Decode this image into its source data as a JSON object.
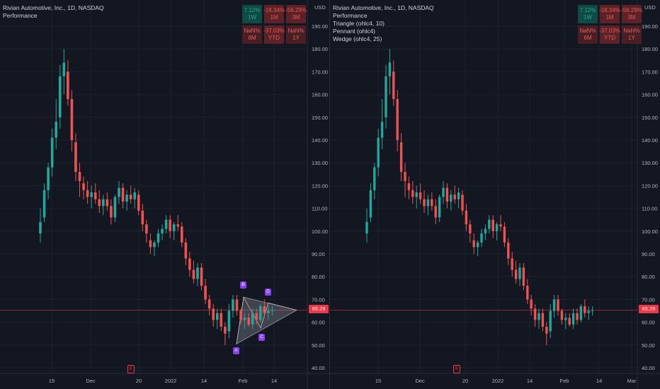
{
  "symbol_title": "Rivian Automotive, Inc., 1D, NASDAQ",
  "indicators": {
    "performance": "Performance",
    "triangle": "Triangle (ohlc4, 10)",
    "pennant": "Pennant (ohlc4)",
    "wedge": "Wedge (ohlc4, 25)"
  },
  "currency": "USD",
  "last_price": "65.29",
  "price_axis_labels": [
    "190.00",
    "180.00",
    "170.00",
    "160.00",
    "150.00",
    "140.00",
    "130.00",
    "120.00",
    "110.00",
    "100.00",
    "90.00",
    "80.00",
    "70.00",
    "60.00",
    "50.00",
    "40.00"
  ],
  "price_axis_values": [
    190,
    180,
    170,
    160,
    150,
    140,
    130,
    120,
    110,
    100,
    90,
    80,
    70,
    60,
    50,
    40
  ],
  "time_axis_labels": [
    "15",
    "Dec",
    "20",
    "2022",
    "14",
    "Feb",
    "14"
  ],
  "time_axis_labels_right": [
    "15",
    "Dec",
    "20",
    "2022",
    "14",
    "Feb",
    "14",
    "Mar"
  ],
  "earnings_marker": "E",
  "performance_table": [
    {
      "value": "7.12%",
      "period": "1W",
      "state": "pos"
    },
    {
      "value": "-18.34%",
      "period": "1M",
      "state": "neg"
    },
    {
      "value": "-56.29%",
      "period": "3M",
      "state": "neg"
    },
    {
      "value": "NaN%",
      "period": "6M",
      "state": "nan"
    },
    {
      "value": "-37.03%",
      "period": "YTD",
      "state": "neg"
    },
    {
      "value": "NaN%",
      "period": "1Y",
      "state": "nan"
    }
  ],
  "pattern_points": [
    "A",
    "B",
    "C",
    "D"
  ],
  "colors": {
    "up": "#26a69a",
    "down": "#ef5350",
    "background": "#131722",
    "grid": "#1e222d",
    "pattern": "#8a3ff0",
    "price_line": "#f23645"
  },
  "candles": [
    [
      99,
      110,
      95,
      104
    ],
    [
      106,
      121,
      104,
      118
    ],
    [
      118,
      130,
      114,
      128
    ],
    [
      128,
      145,
      124,
      141
    ],
    [
      141,
      158,
      136,
      148
    ],
    [
      150,
      173,
      145,
      168
    ],
    [
      168,
      180,
      160,
      174
    ],
    [
      170,
      175,
      155,
      158
    ],
    [
      158,
      162,
      135,
      140
    ],
    [
      139,
      143,
      122,
      126
    ],
    [
      126,
      130,
      115,
      122
    ],
    [
      121,
      124,
      114,
      118
    ],
    [
      118,
      122,
      112,
      115
    ],
    [
      115,
      120,
      110,
      117
    ],
    [
      117,
      121,
      112,
      114
    ],
    [
      114,
      118,
      108,
      111
    ],
    [
      111,
      116,
      107,
      114
    ],
    [
      114,
      117,
      109,
      111
    ],
    [
      111,
      114,
      103,
      106
    ],
    [
      106,
      116,
      104,
      115
    ],
    [
      115,
      122,
      112,
      119
    ],
    [
      119,
      121,
      110,
      113
    ],
    [
      113,
      118,
      109,
      116
    ],
    [
      116,
      120,
      112,
      114
    ],
    [
      114,
      119,
      110,
      117
    ],
    [
      116,
      118,
      107,
      109
    ],
    [
      109,
      112,
      100,
      103
    ],
    [
      103,
      105,
      95,
      99
    ],
    [
      96,
      99,
      90,
      93
    ],
    [
      93,
      96,
      89,
      95
    ],
    [
      95,
      101,
      93,
      99
    ],
    [
      99,
      103,
      96,
      101
    ],
    [
      101,
      107,
      99,
      105
    ],
    [
      105,
      107,
      97,
      100
    ],
    [
      100,
      104,
      96,
      103
    ],
    [
      103,
      107,
      100,
      102
    ],
    [
      102,
      104,
      93,
      95
    ],
    [
      95,
      97,
      85,
      88
    ],
    [
      88,
      91,
      80,
      83
    ],
    [
      83,
      87,
      77,
      79
    ],
    [
      79,
      86,
      76,
      84
    ],
    [
      84,
      86,
      74,
      76
    ],
    [
      76,
      79,
      68,
      70
    ],
    [
      70,
      72,
      63,
      66
    ],
    [
      66,
      68,
      58,
      61
    ],
    [
      61,
      66,
      57,
      64
    ],
    [
      64,
      66,
      56,
      58
    ],
    [
      58,
      60,
      50,
      55
    ],
    [
      56,
      68,
      53,
      65
    ],
    [
      65,
      72,
      62,
      70
    ],
    [
      70,
      72,
      63,
      65
    ],
    [
      65,
      66,
      59,
      61
    ],
    [
      61,
      64,
      57,
      62
    ],
    [
      62,
      64,
      58,
      59
    ],
    [
      59,
      66,
      57,
      64
    ],
    [
      64,
      66,
      59,
      61
    ],
    [
      61,
      68,
      60,
      67
    ],
    [
      67,
      70,
      62,
      64
    ],
    [
      64,
      67,
      61,
      65
    ],
    [
      65,
      67,
      63,
      65.29
    ]
  ]
}
